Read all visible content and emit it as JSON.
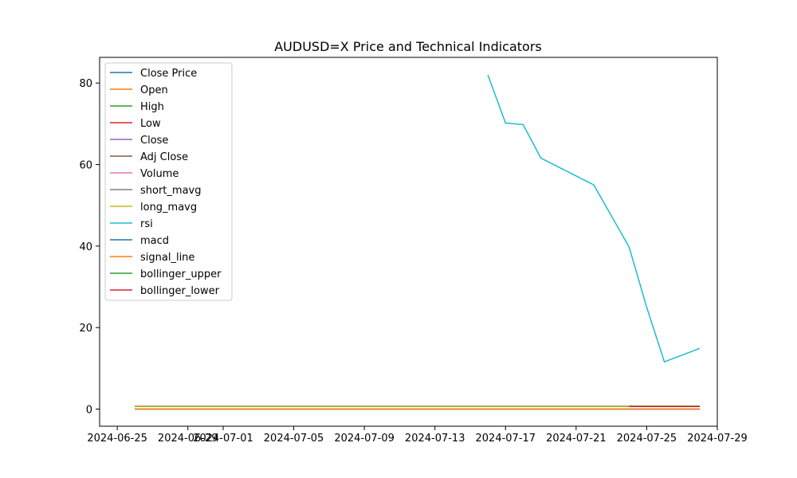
{
  "chart_data": {
    "type": "line",
    "title": "AUDUSD=X Price and Technical Indicators",
    "xlabel": "",
    "ylabel": "",
    "xlim": [
      "2024-06-24",
      "2024-07-29"
    ],
    "ylim": [
      -4.2,
      86.3
    ],
    "x_ticks": [
      "2024-06-25",
      "2024-06-29",
      "2024-07-01",
      "2024-07-05",
      "2024-07-09",
      "2024-07-13",
      "2024-07-17",
      "2024-07-21",
      "2024-07-25",
      "2024-07-29"
    ],
    "y_ticks": [
      0,
      20,
      40,
      60,
      80
    ],
    "grid": false,
    "legend_position": "upper-left",
    "series": [
      {
        "name": "Close Price",
        "color": "#1f77b4",
        "x": [
          "2024-06-26",
          "2024-07-28"
        ],
        "y": [
          0.67,
          0.66
        ]
      },
      {
        "name": "Open",
        "color": "#ff7f0e",
        "x": [
          "2024-06-26",
          "2024-07-28"
        ],
        "y": [
          0.67,
          0.66
        ]
      },
      {
        "name": "High",
        "color": "#2ca02c",
        "x": [
          "2024-06-26",
          "2024-07-28"
        ],
        "y": [
          0.67,
          0.66
        ]
      },
      {
        "name": "Low",
        "color": "#d62728",
        "x": [
          "2024-06-26",
          "2024-07-28"
        ],
        "y": [
          0.66,
          0.65
        ]
      },
      {
        "name": "Close",
        "color": "#9467bd",
        "x": [
          "2024-06-26",
          "2024-07-28"
        ],
        "y": [
          0.67,
          0.66
        ]
      },
      {
        "name": "Adj Close",
        "color": "#8c564b",
        "x": [
          "2024-06-26",
          "2024-07-28"
        ],
        "y": [
          0.67,
          0.66
        ]
      },
      {
        "name": "Volume",
        "color": "#e377c2",
        "x": [
          "2024-06-26",
          "2024-07-28"
        ],
        "y": [
          0,
          0
        ]
      },
      {
        "name": "short_mavg",
        "color": "#7f7f7f",
        "x": [
          "2024-07-02",
          "2024-07-28"
        ],
        "y": [
          0.67,
          0.66
        ]
      },
      {
        "name": "long_mavg",
        "color": "#bcbd22",
        "x": [
          "2024-06-26",
          "2024-07-24"
        ],
        "y": [
          0.67,
          0.67
        ]
      },
      {
        "name": "rsi",
        "color": "#17becf",
        "x": [
          "2024-07-16",
          "2024-07-17",
          "2024-07-18",
          "2024-07-19",
          "2024-07-22",
          "2024-07-24",
          "2024-07-25",
          "2024-07-26",
          "2024-07-28"
        ],
        "y": [
          82.0,
          70.2,
          69.8,
          61.6,
          55.0,
          39.8,
          25.0,
          11.6,
          14.9
        ]
      },
      {
        "name": "macd",
        "color": "#1f77b4",
        "x": [
          "2024-06-26",
          "2024-07-28"
        ],
        "y": [
          0.0,
          0.0
        ]
      },
      {
        "name": "signal_line",
        "color": "#ff7f0e",
        "x": [
          "2024-06-26",
          "2024-07-28"
        ],
        "y": [
          0.0,
          0.0
        ]
      },
      {
        "name": "bollinger_upper",
        "color": "#2ca02c",
        "x": [
          "2024-07-24",
          "2024-07-28"
        ],
        "y": [
          0.68,
          0.68
        ]
      },
      {
        "name": "bollinger_lower",
        "color": "#d62728",
        "x": [
          "2024-07-24",
          "2024-07-28"
        ],
        "y": [
          0.65,
          0.65
        ]
      }
    ]
  }
}
